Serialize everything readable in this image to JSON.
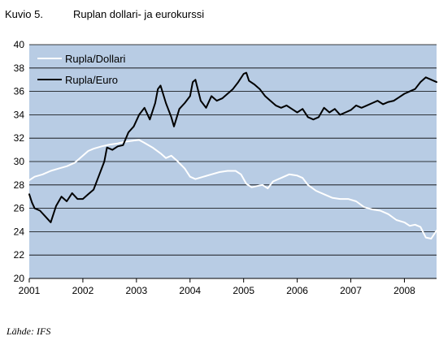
{
  "figure": {
    "label": "Kuvio 5.",
    "title": "Ruplan dollari- ja eurokurssi",
    "source": "Lähde: IFS"
  },
  "chart_data": {
    "type": "line",
    "title": "Ruplan dollari- ja eurokurssi",
    "xlabel": "",
    "ylabel": "",
    "xlim": [
      2001.0,
      2008.6
    ],
    "ylim": [
      20,
      40
    ],
    "x_ticks": [
      2001,
      2002,
      2003,
      2004,
      2005,
      2006,
      2007,
      2008
    ],
    "y_ticks": [
      20,
      22,
      24,
      26,
      28,
      30,
      32,
      34,
      36,
      38,
      40
    ],
    "grid": true,
    "legend_position": "top-left",
    "background_color": "#b8cce4",
    "series": [
      {
        "name": "Rupla/Dollari",
        "color": "#ffffff",
        "x": [
          2001.0,
          2001.1,
          2001.25,
          2001.4,
          2001.55,
          2001.7,
          2001.85,
          2002.0,
          2002.1,
          2002.2,
          2002.35,
          2002.5,
          2002.65,
          2002.8,
          2002.95,
          2003.05,
          2003.15,
          2003.3,
          2003.45,
          2003.55,
          2003.65,
          2003.75,
          2003.9,
          2004.0,
          2004.1,
          2004.25,
          2004.4,
          2004.55,
          2004.7,
          2004.85,
          2004.95,
          2005.05,
          2005.15,
          2005.25,
          2005.35,
          2005.45,
          2005.55,
          2005.7,
          2005.85,
          2006.0,
          2006.1,
          2006.2,
          2006.35,
          2006.5,
          2006.65,
          2006.8,
          2006.95,
          2007.1,
          2007.25,
          2007.4,
          2007.55,
          2007.7,
          2007.85,
          2008.0,
          2008.1,
          2008.2,
          2008.3,
          2008.4,
          2008.5,
          2008.6
        ],
        "values": [
          28.4,
          28.7,
          28.9,
          29.2,
          29.4,
          29.6,
          29.9,
          30.5,
          30.9,
          31.1,
          31.3,
          31.45,
          31.55,
          31.7,
          31.8,
          31.85,
          31.6,
          31.2,
          30.7,
          30.3,
          30.5,
          30.1,
          29.4,
          28.7,
          28.5,
          28.7,
          28.9,
          29.1,
          29.2,
          29.2,
          28.9,
          28.1,
          27.8,
          27.9,
          28.0,
          27.7,
          28.3,
          28.6,
          28.9,
          28.8,
          28.6,
          28.0,
          27.5,
          27.2,
          26.9,
          26.8,
          26.8,
          26.6,
          26.1,
          25.9,
          25.8,
          25.5,
          25.0,
          24.8,
          24.5,
          24.6,
          24.4,
          23.5,
          23.4,
          24.1
        ]
      },
      {
        "name": "Rupla/Euro",
        "color": "#000000",
        "x": [
          2001.0,
          2001.05,
          2001.1,
          2001.2,
          2001.3,
          2001.4,
          2001.5,
          2001.6,
          2001.7,
          2001.8,
          2001.9,
          2002.0,
          2002.1,
          2002.2,
          2002.3,
          2002.4,
          2002.45,
          2002.55,
          2002.65,
          2002.75,
          2002.85,
          2002.95,
          2003.05,
          2003.15,
          2003.25,
          2003.35,
          2003.4,
          2003.45,
          2003.55,
          2003.65,
          2003.7,
          2003.8,
          2003.9,
          2004.0,
          2004.05,
          2004.1,
          2004.2,
          2004.3,
          2004.4,
          2004.5,
          2004.6,
          2004.7,
          2004.8,
          2004.9,
          2005.0,
          2005.05,
          2005.1,
          2005.2,
          2005.3,
          2005.4,
          2005.5,
          2005.6,
          2005.7,
          2005.8,
          2005.9,
          2006.0,
          2006.1,
          2006.2,
          2006.3,
          2006.4,
          2006.5,
          2006.6,
          2006.7,
          2006.8,
          2006.9,
          2007.0,
          2007.1,
          2007.2,
          2007.3,
          2007.4,
          2007.5,
          2007.6,
          2007.7,
          2007.8,
          2007.9,
          2008.0,
          2008.1,
          2008.2,
          2008.3,
          2008.4,
          2008.5,
          2008.6
        ],
        "values": [
          27.2,
          26.5,
          26.0,
          25.8,
          25.3,
          24.8,
          26.2,
          27.0,
          26.6,
          27.3,
          26.8,
          26.8,
          27.2,
          27.6,
          28.8,
          30.0,
          31.2,
          31.0,
          31.3,
          31.4,
          32.5,
          33.0,
          34.0,
          34.6,
          33.6,
          35.0,
          36.2,
          36.5,
          35.0,
          33.8,
          33.0,
          34.5,
          35.0,
          35.6,
          36.8,
          37.0,
          35.2,
          34.6,
          35.6,
          35.2,
          35.4,
          35.8,
          36.2,
          36.8,
          37.5,
          37.6,
          36.9,
          36.6,
          36.2,
          35.6,
          35.2,
          34.8,
          34.6,
          34.8,
          34.5,
          34.2,
          34.5,
          33.8,
          33.6,
          33.8,
          34.6,
          34.2,
          34.5,
          34.0,
          34.2,
          34.4,
          34.8,
          34.6,
          34.8,
          35.0,
          35.2,
          34.9,
          35.1,
          35.2,
          35.5,
          35.8,
          36.0,
          36.2,
          36.8,
          37.2,
          37.0,
          36.8
        ]
      }
    ]
  }
}
